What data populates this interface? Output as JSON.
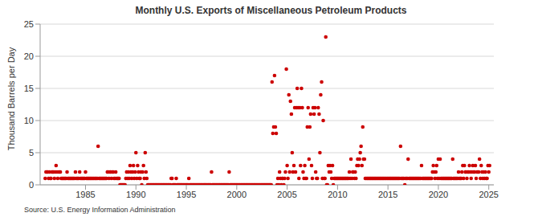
{
  "chart_data": {
    "type": "scatter",
    "title": "Monthly U.S. Exports of Miscellaneous Petroleum Products",
    "y_label": "Thousand Barrels per Day",
    "source": "Source: U.S. Energy Information Administration",
    "color": "#cc0000",
    "marker": "circle",
    "grid": true,
    "xlim": [
      1980.5,
      2025.5
    ],
    "xticks": [
      1985,
      1990,
      1995,
      2000,
      2005,
      2010,
      2015,
      2020,
      2025
    ],
    "ylim": [
      0,
      25
    ],
    "yticks": [
      0,
      5,
      10,
      15,
      20,
      25
    ],
    "x": [
      1981.0,
      1981.08,
      1981.17,
      1981.25,
      1981.33,
      1981.42,
      1981.5,
      1981.58,
      1981.67,
      1981.75,
      1981.83,
      1981.92,
      1982.0,
      1982.08,
      1982.17,
      1982.25,
      1982.33,
      1982.42,
      1982.5,
      1982.58,
      1982.67,
      1982.75,
      1982.83,
      1982.92,
      1983.0,
      1983.08,
      1983.17,
      1983.25,
      1983.33,
      1983.42,
      1983.5,
      1983.58,
      1983.67,
      1983.75,
      1983.83,
      1983.92,
      1984.0,
      1984.08,
      1984.17,
      1984.25,
      1984.33,
      1984.42,
      1984.5,
      1984.58,
      1984.67,
      1984.75,
      1984.83,
      1984.92,
      1985.0,
      1985.08,
      1985.17,
      1985.25,
      1985.33,
      1985.42,
      1985.5,
      1985.58,
      1985.67,
      1985.75,
      1985.83,
      1985.92,
      1986.0,
      1986.08,
      1986.17,
      1986.25,
      1986.33,
      1986.42,
      1986.5,
      1986.58,
      1986.67,
      1986.75,
      1986.83,
      1986.92,
      1987.0,
      1987.08,
      1987.17,
      1987.25,
      1987.33,
      1987.42,
      1987.5,
      1987.58,
      1987.67,
      1987.75,
      1987.83,
      1987.92,
      1988.0,
      1988.08,
      1988.17,
      1988.25,
      1988.33,
      1988.42,
      1988.5,
      1988.58,
      1988.67,
      1988.75,
      1988.83,
      1988.92,
      1989.0,
      1989.08,
      1989.17,
      1989.25,
      1989.33,
      1989.42,
      1989.5,
      1989.58,
      1989.67,
      1989.75,
      1989.83,
      1989.92,
      1990.0,
      1990.08,
      1990.17,
      1990.25,
      1990.33,
      1990.42,
      1990.5,
      1990.58,
      1990.67,
      1990.75,
      1990.83,
      1990.92,
      1991.0,
      1991.08,
      1991.17,
      1991.25,
      1991.33,
      1991.42,
      1991.5,
      1991.58,
      1991.67,
      1991.75,
      1991.83,
      1991.92,
      1992.0,
      1992.08,
      1992.17,
      1992.25,
      1992.33,
      1992.42,
      1992.5,
      1992.58,
      1992.67,
      1992.75,
      1992.83,
      1992.92,
      1993.0,
      1993.08,
      1993.17,
      1993.25,
      1993.33,
      1993.42,
      1993.5,
      1993.58,
      1993.67,
      1993.75,
      1993.83,
      1993.92,
      1994.0,
      1994.08,
      1994.17,
      1994.25,
      1994.33,
      1994.42,
      1994.5,
      1994.58,
      1994.67,
      1994.75,
      1994.83,
      1994.92,
      1995.0,
      1995.08,
      1995.17,
      1995.25,
      1995.33,
      1995.42,
      1995.5,
      1995.58,
      1995.67,
      1995.75,
      1995.83,
      1995.92,
      1996.0,
      1996.08,
      1996.17,
      1996.25,
      1996.33,
      1996.42,
      1996.5,
      1996.58,
      1996.67,
      1996.75,
      1996.83,
      1996.92,
      1997.0,
      1997.08,
      1997.17,
      1997.25,
      1997.33,
      1997.42,
      1997.5,
      1997.58,
      1997.67,
      1997.75,
      1997.83,
      1997.92,
      1998.0,
      1998.08,
      1998.17,
      1998.25,
      1998.33,
      1998.42,
      1998.5,
      1998.58,
      1998.67,
      1998.75,
      1998.83,
      1998.92,
      1999.0,
      1999.08,
      1999.17,
      1999.25,
      1999.33,
      1999.42,
      1999.5,
      1999.58,
      1999.67,
      1999.75,
      1999.83,
      1999.92,
      2000.0,
      2000.08,
      2000.17,
      2000.25,
      2000.33,
      2000.42,
      2000.5,
      2000.58,
      2000.67,
      2000.75,
      2000.83,
      2000.92,
      2001.0,
      2001.08,
      2001.17,
      2001.25,
      2001.33,
      2001.42,
      2001.5,
      2001.58,
      2001.67,
      2001.75,
      2001.83,
      2001.92,
      2002.0,
      2002.08,
      2002.17,
      2002.25,
      2002.33,
      2002.42,
      2002.5,
      2002.58,
      2002.67,
      2002.75,
      2002.83,
      2002.92,
      2003.0,
      2003.08,
      2003.17,
      2003.25,
      2003.33,
      2003.42,
      2003.5,
      2003.58,
      2003.67,
      2003.75,
      2003.83,
      2003.92,
      2004.0,
      2004.08,
      2004.17,
      2004.25,
      2004.33,
      2004.42,
      2004.5,
      2004.58,
      2004.67,
      2004.75,
      2004.83,
      2004.92,
      2005.0,
      2005.08,
      2005.17,
      2005.25,
      2005.33,
      2005.42,
      2005.5,
      2005.58,
      2005.67,
      2005.75,
      2005.83,
      2005.92,
      2006.0,
      2006.08,
      2006.17,
      2006.25,
      2006.33,
      2006.42,
      2006.5,
      2006.58,
      2006.67,
      2006.75,
      2006.83,
      2006.92,
      2007.0,
      2007.08,
      2007.17,
      2007.25,
      2007.33,
      2007.42,
      2007.5,
      2007.58,
      2007.67,
      2007.75,
      2007.83,
      2007.92,
      2008.0,
      2008.08,
      2008.17,
      2008.25,
      2008.33,
      2008.42,
      2008.5,
      2008.58,
      2008.67,
      2008.75,
      2008.83,
      2008.92,
      2009.0,
      2009.08,
      2009.17,
      2009.25,
      2009.33,
      2009.42,
      2009.5,
      2009.58,
      2009.67,
      2009.75,
      2009.83,
      2009.92,
      2010.0,
      2010.08,
      2010.17,
      2010.25,
      2010.33,
      2010.42,
      2010.5,
      2010.58,
      2010.67,
      2010.75,
      2010.83,
      2010.92,
      2011.0,
      2011.08,
      2011.17,
      2011.25,
      2011.33,
      2011.42,
      2011.5,
      2011.58,
      2011.67,
      2011.75,
      2011.83,
      2011.92,
      2012.0,
      2012.08,
      2012.17,
      2012.25,
      2012.33,
      2012.42,
      2012.5,
      2012.58,
      2012.67,
      2012.75,
      2012.83,
      2012.92,
      2013.0,
      2013.08,
      2013.17,
      2013.25,
      2013.33,
      2013.42,
      2013.5,
      2013.58,
      2013.67,
      2013.75,
      2013.83,
      2013.92,
      2014.0,
      2014.08,
      2014.17,
      2014.25,
      2014.33,
      2014.42,
      2014.5,
      2014.58,
      2014.67,
      2014.75,
      2014.83,
      2014.92,
      2015.0,
      2015.08,
      2015.17,
      2015.25,
      2015.33,
      2015.42,
      2015.5,
      2015.58,
      2015.67,
      2015.75,
      2015.83,
      2015.92,
      2016.0,
      2016.08,
      2016.17,
      2016.25,
      2016.33,
      2016.42,
      2016.5,
      2016.58,
      2016.67,
      2016.75,
      2016.83,
      2016.92,
      2017.0,
      2017.08,
      2017.17,
      2017.25,
      2017.33,
      2017.42,
      2017.5,
      2017.58,
      2017.67,
      2017.75,
      2017.83,
      2017.92,
      2018.0,
      2018.08,
      2018.17,
      2018.25,
      2018.33,
      2018.42,
      2018.5,
      2018.58,
      2018.67,
      2018.75,
      2018.83,
      2018.92,
      2019.0,
      2019.08,
      2019.17,
      2019.25,
      2019.33,
      2019.42,
      2019.5,
      2019.58,
      2019.67,
      2019.75,
      2019.83,
      2019.92,
      2020.0,
      2020.08,
      2020.17,
      2020.25,
      2020.33,
      2020.42,
      2020.5,
      2020.58,
      2020.67,
      2020.75,
      2020.83,
      2020.92,
      2021.0,
      2021.08,
      2021.17,
      2021.25,
      2021.33,
      2021.42,
      2021.5,
      2021.58,
      2021.67,
      2021.75,
      2021.83,
      2021.92,
      2022.0,
      2022.08,
      2022.17,
      2022.25,
      2022.33,
      2022.42,
      2022.5,
      2022.58,
      2022.67,
      2022.75,
      2022.83,
      2022.92,
      2023.0,
      2023.08,
      2023.17,
      2023.25,
      2023.33,
      2023.42,
      2023.5,
      2023.58,
      2023.67,
      2023.75,
      2023.83,
      2023.92,
      2024.0,
      2024.08,
      2024.17,
      2024.25,
      2024.33,
      2024.42,
      2024.5,
      2024.58,
      2024.67,
      2024.75,
      2024.83,
      2024.92,
      2025.0,
      2025.08
    ],
    "values": [
      1,
      2,
      2,
      2,
      1,
      2,
      1,
      1,
      2,
      2,
      2,
      1,
      2,
      3,
      2,
      1,
      2,
      2,
      2,
      1,
      1,
      1,
      1,
      1,
      1,
      1,
      2,
      1,
      1,
      1,
      1,
      1,
      1,
      1,
      1,
      1,
      2,
      1,
      1,
      1,
      1,
      2,
      1,
      1,
      1,
      1,
      1,
      1,
      2,
      1,
      1,
      1,
      1,
      1,
      1,
      1,
      1,
      1,
      1,
      1,
      1,
      1,
      1,
      6,
      1,
      1,
      1,
      1,
      1,
      1,
      1,
      1,
      1,
      1,
      2,
      2,
      1,
      2,
      2,
      1,
      2,
      2,
      1,
      1,
      2,
      1,
      1,
      1,
      1,
      0,
      0,
      0,
      0,
      0,
      0,
      0,
      1,
      2,
      1,
      2,
      1,
      3,
      2,
      1,
      2,
      3,
      1,
      2,
      5,
      1,
      3,
      2,
      1,
      1,
      2,
      0,
      2,
      3,
      1,
      5,
      2,
      1,
      0,
      0,
      0,
      0,
      0,
      0,
      0,
      0,
      0,
      0,
      0,
      0,
      0,
      0,
      0,
      0,
      0,
      0,
      0,
      0,
      0,
      0,
      0,
      0,
      0,
      0,
      0,
      0,
      1,
      1,
      0,
      0,
      0,
      0,
      1,
      0,
      0,
      0,
      0,
      0,
      0,
      0,
      0,
      0,
      0,
      0,
      0,
      0,
      0,
      1,
      0,
      0,
      0,
      0,
      0,
      0,
      0,
      0,
      0,
      0,
      0,
      0,
      0,
      0,
      0,
      0,
      0,
      0,
      0,
      0,
      0,
      0,
      0,
      0,
      0,
      0,
      2,
      0,
      0,
      0,
      0,
      0,
      0,
      0,
      0,
      0,
      0,
      0,
      0,
      0,
      0,
      0,
      0,
      0,
      0,
      0,
      0,
      2,
      0,
      0,
      0,
      0,
      0,
      0,
      0,
      0,
      0,
      0,
      0,
      0,
      0,
      0,
      0,
      0,
      0,
      0,
      0,
      0,
      0,
      0,
      0,
      0,
      0,
      0,
      0,
      0,
      0,
      0,
      0,
      0,
      0,
      0,
      0,
      0,
      0,
      0,
      0,
      0,
      0,
      0,
      0,
      0,
      0,
      0,
      0,
      0,
      0,
      0,
      16,
      8,
      9,
      17,
      9,
      8,
      0,
      1,
      0,
      2,
      1,
      0,
      1,
      1,
      0,
      1,
      2,
      18,
      3,
      1,
      14,
      2,
      13,
      11,
      5,
      2,
      3,
      12,
      2,
      12,
      15,
      12,
      1,
      12,
      3,
      15,
      12,
      2,
      1,
      3,
      1,
      1,
      9,
      12,
      4,
      9,
      11,
      3,
      1,
      12,
      11,
      12,
      2,
      1,
      1,
      12,
      11,
      5,
      14,
      16,
      1,
      10,
      1,
      1,
      23,
      0,
      0,
      3,
      2,
      3,
      2,
      1,
      3,
      0,
      1,
      1,
      1,
      1,
      1,
      1,
      1,
      1,
      1,
      1,
      1,
      1,
      1,
      1,
      1,
      1,
      1,
      1,
      2,
      1,
      4,
      1,
      2,
      2,
      1,
      2,
      1,
      3,
      4,
      3,
      4,
      5,
      6,
      3,
      9,
      4,
      4,
      1,
      1,
      1,
      1,
      1,
      1,
      1,
      1,
      1,
      1,
      1,
      1,
      1,
      1,
      1,
      1,
      1,
      1,
      1,
      1,
      1,
      1,
      1,
      1,
      1,
      1,
      1,
      1,
      1,
      1,
      1,
      1,
      1,
      1,
      1,
      1,
      1,
      1,
      1,
      1,
      1,
      1,
      6,
      1,
      1,
      1,
      1,
      0,
      1,
      1,
      1,
      4,
      1,
      1,
      1,
      1,
      1,
      1,
      1,
      1,
      1,
      1,
      1,
      1,
      1,
      1,
      1,
      3,
      1,
      1,
      1,
      1,
      1,
      1,
      1,
      1,
      1,
      1,
      1,
      1,
      2,
      3,
      2,
      1,
      2,
      3,
      1,
      4,
      1,
      4,
      1,
      1,
      1,
      1,
      1,
      1,
      1,
      1,
      1,
      1,
      1,
      1,
      1,
      1,
      4,
      1,
      1,
      1,
      1,
      1,
      1,
      2,
      1,
      1,
      1,
      2,
      3,
      1,
      3,
      2,
      2,
      1,
      2,
      2,
      3,
      2,
      1,
      2,
      3,
      2,
      2,
      3,
      1,
      2,
      2,
      2,
      4,
      1,
      3,
      2,
      1,
      2,
      1,
      2,
      1,
      1,
      3,
      2,
      3
    ]
  }
}
